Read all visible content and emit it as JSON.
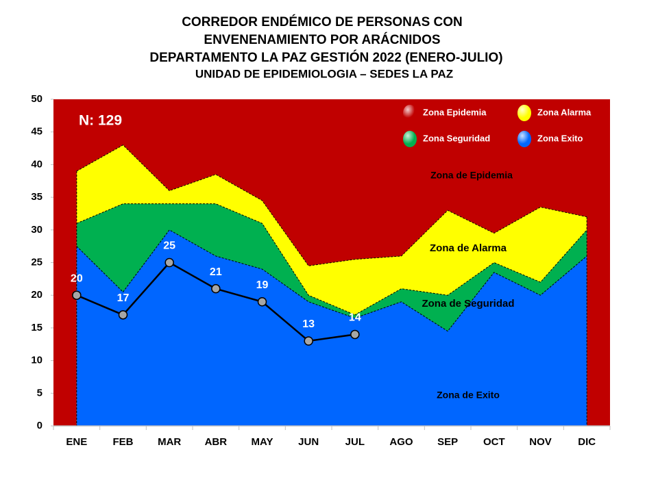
{
  "chart_data": {
    "type": "area",
    "title": [
      "CORREDOR ENDÉMICO DE PERSONAS CON",
      "ENVENENAMIENTO POR ARÁCNIDOS",
      "DEPARTAMENTO  LA PAZ GESTIÓN 2022 (ENERO-JULIO)",
      "UNIDAD DE EPIDEMIOLOGIA – SEDES LA PAZ"
    ],
    "categories": [
      "ENE",
      "FEB",
      "MAR",
      "ABR",
      "MAY",
      "JUN",
      "JUL",
      "AGO",
      "SEP",
      "OCT",
      "NOV",
      "DIC"
    ],
    "ylim": [
      0,
      50
    ],
    "yticks": [
      0,
      5,
      10,
      15,
      20,
      25,
      30,
      35,
      40,
      45,
      50
    ],
    "epidemic_zone": {
      "name": "Zona Epidemia",
      "color": "#c00000"
    },
    "series": [
      {
        "name": "Zona Alarma",
        "color": "#ffff00",
        "values": [
          39,
          43,
          36,
          38.5,
          34.5,
          24.5,
          25.5,
          26,
          33,
          29.5,
          33.5,
          32
        ]
      },
      {
        "name": "Zona Seguridad",
        "color": "#00b050",
        "values": [
          31,
          34,
          34,
          34,
          31,
          20,
          17,
          21,
          20,
          25,
          22,
          30
        ]
      },
      {
        "name": "Zona Exito",
        "color": "#0066ff",
        "values": [
          27.5,
          20.5,
          30,
          26,
          24,
          19,
          16.5,
          19,
          14.5,
          23.5,
          20,
          26
        ]
      }
    ],
    "cases": {
      "type": "line",
      "color": "#000000",
      "marker_color": "#a6a6a6",
      "values": [
        20,
        17,
        25,
        21,
        19,
        13,
        14,
        null,
        null,
        null,
        null,
        null
      ]
    },
    "annotations": [
      "N: 129",
      "Zona de Epidemia",
      "Zona de Alarma",
      "Zona de Seguridad",
      "Zona de Exito"
    ]
  }
}
